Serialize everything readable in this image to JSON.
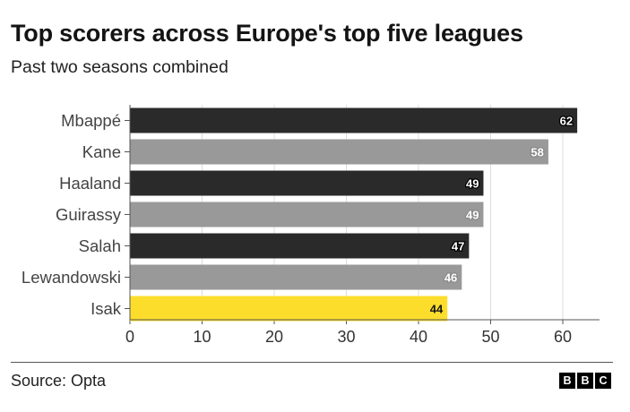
{
  "header": {
    "title": "Top scorers across Europe's top five leagues",
    "subtitle": "Past two seasons combined"
  },
  "footer": {
    "source": "Source: Opta",
    "logo": [
      "B",
      "B",
      "C"
    ]
  },
  "colors": {
    "dark": "#2a2a2a",
    "grey": "#999999",
    "highlight": "#fddd2c",
    "grid": "#dddddd",
    "axis": "#555555",
    "label": "#333333"
  },
  "chart_data": {
    "type": "bar",
    "orientation": "horizontal",
    "title": "Top scorers across Europe's top five leagues",
    "subtitle": "Past two seasons combined",
    "xlabel": "",
    "ylabel": "",
    "categories": [
      "Mbappé",
      "Kane",
      "Haaland",
      "Guirassy",
      "Salah",
      "Lewandowski",
      "Isak"
    ],
    "values": [
      62,
      58,
      49,
      49,
      47,
      46,
      44
    ],
    "bar_colors": [
      "dark",
      "grey",
      "dark",
      "grey",
      "dark",
      "grey",
      "highlight"
    ],
    "xlim": [
      0,
      65
    ],
    "xticks": [
      0,
      10,
      20,
      30,
      40,
      50,
      60
    ],
    "grid": true,
    "data_labels": true
  }
}
